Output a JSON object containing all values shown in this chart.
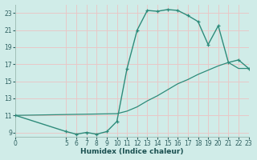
{
  "xlabel": "Humidex (Indice chaleur)",
  "bg_color": "#d0ece8",
  "grid_color": "#e8c8c8",
  "line_color": "#2e8b7a",
  "line1_x": [
    0,
    5,
    6,
    7,
    8,
    9,
    10,
    11,
    12,
    13,
    14,
    15,
    16,
    17,
    18,
    19,
    20,
    21,
    22,
    23
  ],
  "line1_y": [
    11.0,
    9.1,
    8.8,
    9.0,
    8.8,
    9.1,
    10.3,
    16.5,
    21.0,
    23.3,
    23.2,
    23.4,
    23.3,
    22.7,
    22.0,
    19.3,
    21.5,
    17.2,
    17.5,
    16.5
  ],
  "line2_x": [
    0,
    10,
    11,
    12,
    13,
    14,
    15,
    16,
    17,
    18,
    19,
    20,
    21,
    22,
    23
  ],
  "line2_y": [
    11.0,
    11.2,
    11.5,
    12.0,
    12.7,
    13.3,
    14.0,
    14.7,
    15.2,
    15.8,
    16.3,
    16.8,
    17.2,
    16.5,
    16.5
  ],
  "xlim": [
    0,
    23
  ],
  "ylim": [
    8.5,
    24.0
  ],
  "xticks": [
    0,
    5,
    6,
    7,
    8,
    9,
    10,
    11,
    12,
    13,
    14,
    15,
    16,
    17,
    18,
    19,
    20,
    21,
    22,
    23
  ],
  "yticks": [
    9,
    11,
    13,
    15,
    17,
    19,
    21,
    23
  ],
  "tick_fontsize": 5.5,
  "label_fontsize": 6.5
}
